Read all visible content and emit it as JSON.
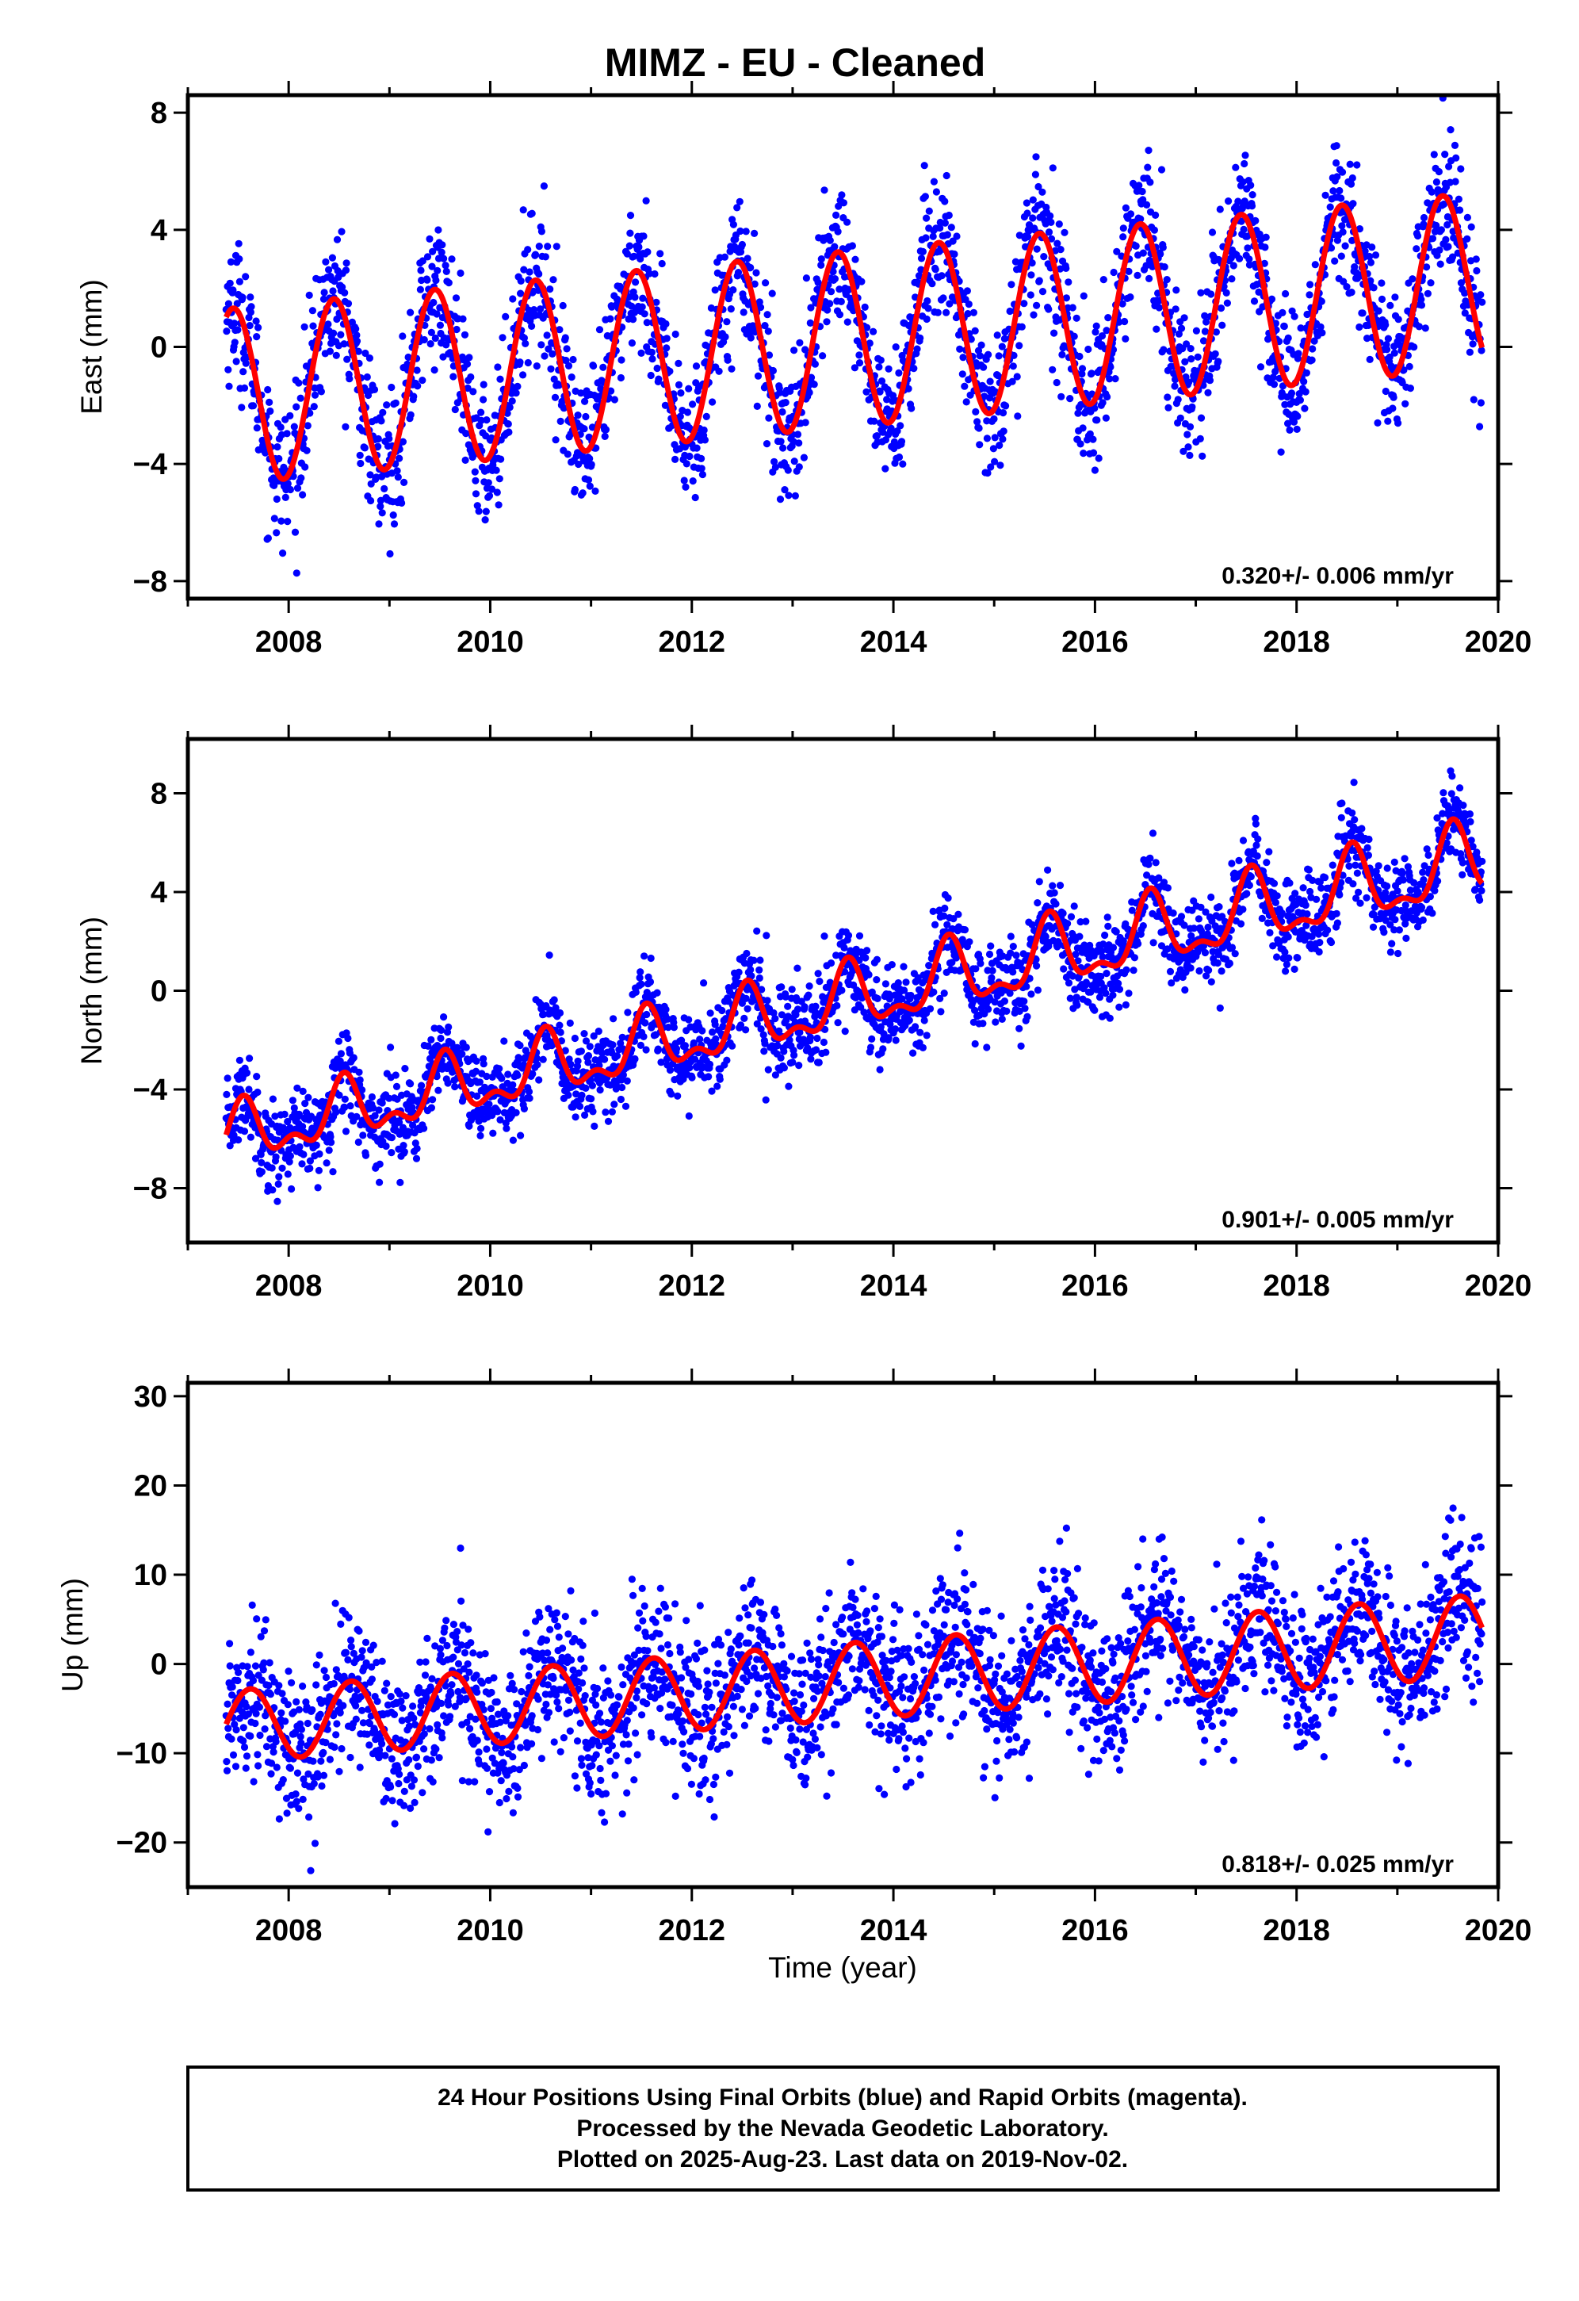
{
  "figure": {
    "title": "MIMZ  - EU - Cleaned",
    "xlabel": "Time (year)",
    "footer": [
      "24 Hour Positions Using Final Orbits (blue) and Rapid Orbits (magenta).",
      "Processed by the Nevada Geodetic Laboratory.",
      "Plotted on 2025-Aug-23. Last data on 2019-Nov-02."
    ],
    "colors": {
      "points": "#0000ff",
      "model": "#ff0000",
      "frame": "#000000"
    }
  },
  "chart_data": [
    {
      "type": "scatter",
      "ylabel": "East (mm)",
      "rate_label": "0.320+/- 0.006 mm/yr",
      "xlim": [
        2007.0,
        2020.0
      ],
      "ylim": [
        -8.6,
        8.6
      ],
      "xticks": [
        2008,
        2010,
        2012,
        2014,
        2016,
        2018,
        2020
      ],
      "yticks": [
        -8,
        -4,
        0,
        4,
        8
      ],
      "data_range": [
        2007.38,
        2019.84
      ],
      "model": {
        "start": 2007.38,
        "offset": -1.7,
        "rate": 0.32,
        "amplitude": 3.0,
        "amplitude_end": 3.0,
        "peak_phase": 0.45,
        "semiannual": 0.0
      },
      "series": [
        {
          "name": "",
          "x_start": 2007.38,
          "x_end": 2019.84,
          "points": 2600,
          "scatter_sd": 1.2,
          "color": "#0000ff"
        },
        {
          "name": "",
          "type": "line",
          "color": "#ff0000"
        }
      ]
    },
    {
      "type": "scatter",
      "ylabel": "North (mm)",
      "rate_label": "0.901+/- 0.005 mm/yr",
      "xlim": [
        2007.0,
        2020.0
      ],
      "ylim": [
        -10.2,
        10.2
      ],
      "xticks": [
        2008,
        2010,
        2012,
        2014,
        2016,
        2018,
        2020
      ],
      "yticks": [
        -8,
        -4,
        0,
        4,
        8
      ],
      "data_range": [
        2007.38,
        2019.84
      ],
      "model": {
        "start": 2007.38,
        "offset": -6.0,
        "rate": 0.901,
        "amplitude": 1.0,
        "amplitude_end": 1.4,
        "peak_phase": 0.55,
        "semiannual": 0.6
      },
      "series": [
        {
          "name": "",
          "x_start": 2007.38,
          "x_end": 2019.84,
          "points": 2600,
          "scatter_sd": 0.9,
          "color": "#0000ff"
        },
        {
          "name": "",
          "type": "line",
          "color": "#ff0000"
        }
      ]
    },
    {
      "type": "scatter",
      "ylabel": "Up (mm)",
      "rate_label": "0.818+/- 0.025 mm/yr",
      "xlim": [
        2007.0,
        2020.0
      ],
      "ylim": [
        -25,
        31.5
      ],
      "xticks": [
        2008,
        2010,
        2012,
        2014,
        2016,
        2018,
        2020
      ],
      "yticks": [
        -20,
        -10,
        0,
        10,
        20,
        30
      ],
      "data_range": [
        2007.38,
        2019.84
      ],
      "model": {
        "start": 2007.38,
        "offset": -7.0,
        "rate": 0.818,
        "amplitude": 4.0,
        "amplitude_end": 4.6,
        "peak_phase": 0.62,
        "semiannual": 0.0
      },
      "series": [
        {
          "name": "",
          "x_start": 2007.38,
          "x_end": 2019.84,
          "points": 2600,
          "scatter_sd": 4.2,
          "color": "#0000ff"
        },
        {
          "name": "",
          "type": "line",
          "color": "#ff0000"
        }
      ]
    }
  ]
}
